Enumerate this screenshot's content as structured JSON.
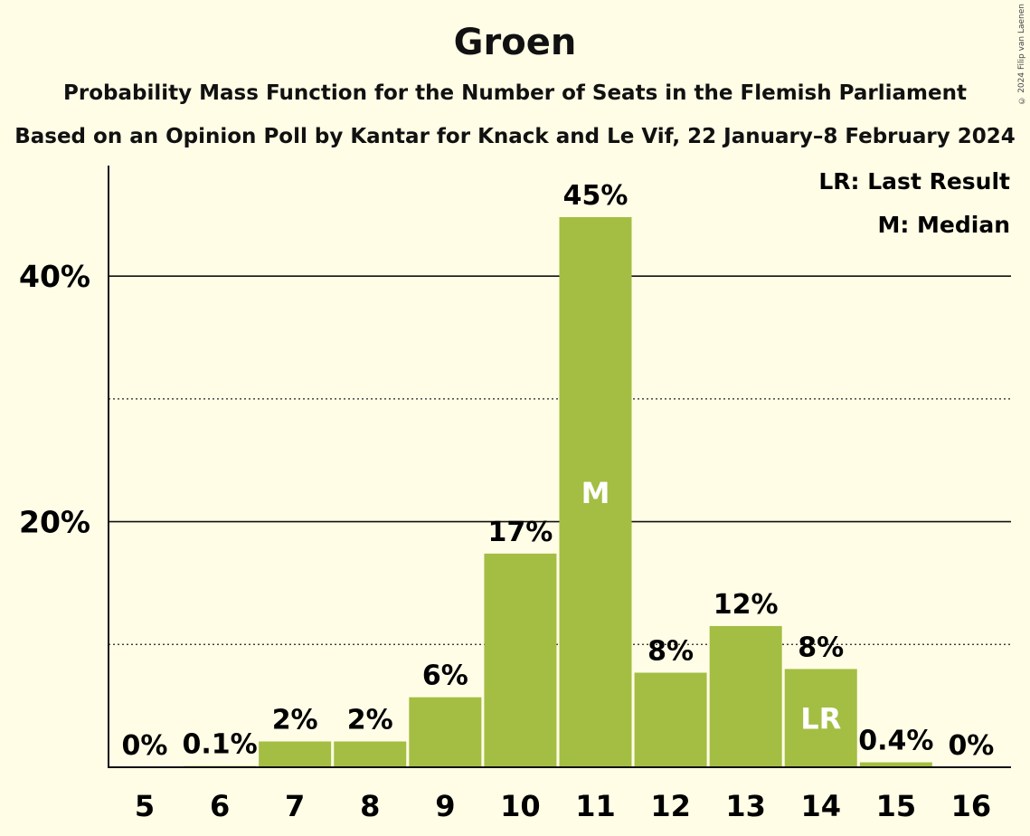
{
  "copyright": "© 2024 Filip van Laenen",
  "chart_data": {
    "type": "bar",
    "title": "Groen",
    "subtitle": "Probability Mass Function for the Number of Seats in the Flemish Parliament",
    "subtitle2": "Based on an Opinion Poll by Kantar for Knack and Le Vif, 22 January–8 February 2024",
    "categories": [
      "5",
      "6",
      "7",
      "8",
      "9",
      "10",
      "11",
      "12",
      "13",
      "14",
      "15",
      "16"
    ],
    "values": [
      0,
      0.1,
      2.1,
      2.1,
      5.7,
      17.4,
      44.8,
      7.7,
      11.5,
      8.0,
      0.4,
      0
    ],
    "value_labels": [
      "0%",
      "0.1%",
      "2%",
      "2%",
      "6%",
      "17%",
      "45%",
      "8%",
      "12%",
      "8%",
      "0.4%",
      "0%"
    ],
    "ylim": [
      0,
      49
    ],
    "yticks": [
      {
        "value": 20,
        "label": "20%"
      },
      {
        "value": 40,
        "label": "40%"
      }
    ],
    "minor_gridlines": [
      10,
      30
    ],
    "bar_color": "#a3be43",
    "median_category": "11",
    "median_marker": "M",
    "last_result_category": "14",
    "last_result_marker": "LR",
    "legend": [
      "LR: Last Result",
      "M: Median"
    ],
    "legend_position": "top-right"
  }
}
